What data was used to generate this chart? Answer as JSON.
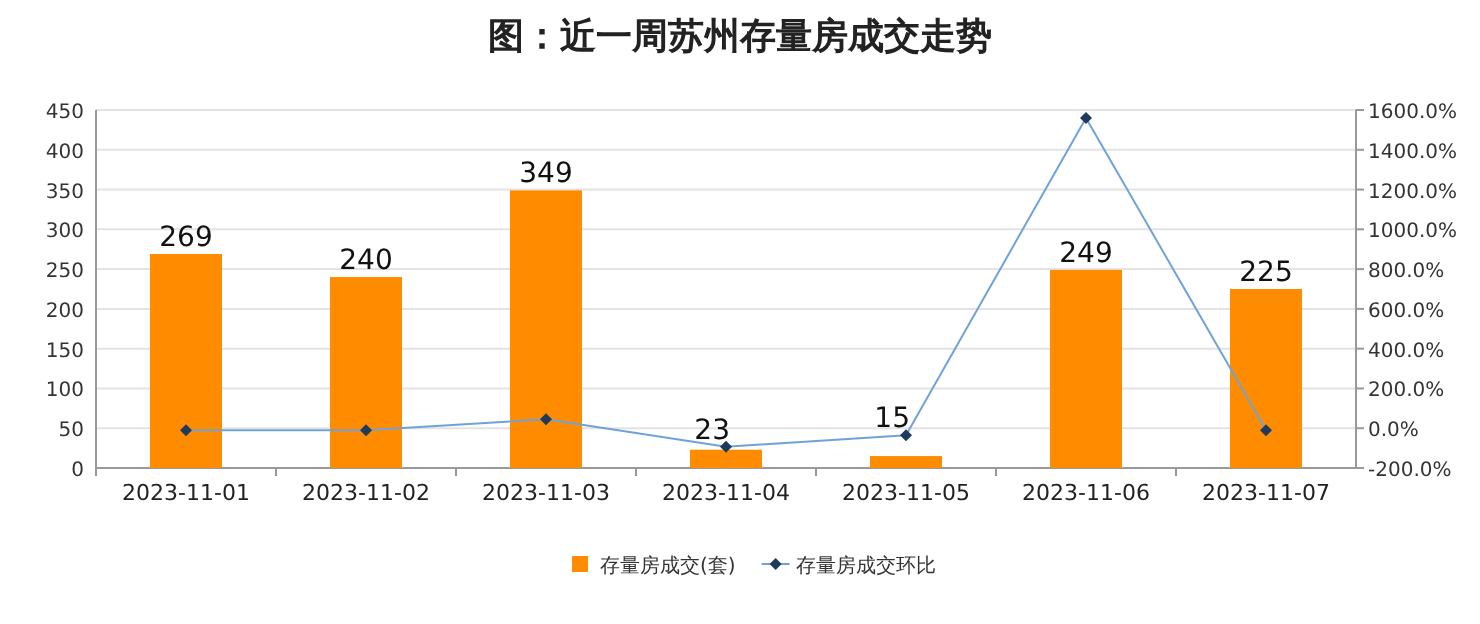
{
  "chart_data": {
    "type": "bar",
    "title": "图：近一周苏州存量房成交走势",
    "categories": [
      "2023-11-01",
      "2023-11-02",
      "2023-11-03",
      "2023-11-04",
      "2023-11-05",
      "2023-11-06",
      "2023-11-07"
    ],
    "series": [
      {
        "name": "存量房成交(套)",
        "color": "#ff8c00",
        "values": [
          269,
          240,
          349,
          23,
          15,
          249,
          225
        ],
        "value_labels": [
          "269",
          "240",
          "349",
          "23",
          "15",
          "249",
          "225"
        ]
      },
      {
        "name": "存量房成交环比",
        "type": "line",
        "axis": "y2",
        "color": "#6fa3d8",
        "marker": "diamond",
        "values": [
          -10,
          -10,
          45,
          -93,
          -35,
          1560,
          -10
        ]
      }
    ],
    "ylim": [
      0,
      450
    ],
    "yticks": [
      0,
      50,
      100,
      150,
      200,
      250,
      300,
      350,
      400,
      450
    ],
    "y2lim": [
      -200,
      1600
    ],
    "y2ticks": [
      {
        "value": -200,
        "label": "-200.0%"
      },
      {
        "value": 0,
        "label": "0.0%"
      },
      {
        "value": 200,
        "label": "200.0%"
      },
      {
        "value": 400,
        "label": "400.0%"
      },
      {
        "value": 600,
        "label": "600.0%"
      },
      {
        "value": 800,
        "label": "800.0%"
      },
      {
        "value": 1000,
        "label": "1000.0%"
      },
      {
        "value": 1200,
        "label": "1200.0%"
      },
      {
        "value": 1400,
        "label": "1400.0%"
      },
      {
        "value": 1600,
        "label": "1600.0%"
      }
    ],
    "grid": "y",
    "legend": "bottom"
  }
}
